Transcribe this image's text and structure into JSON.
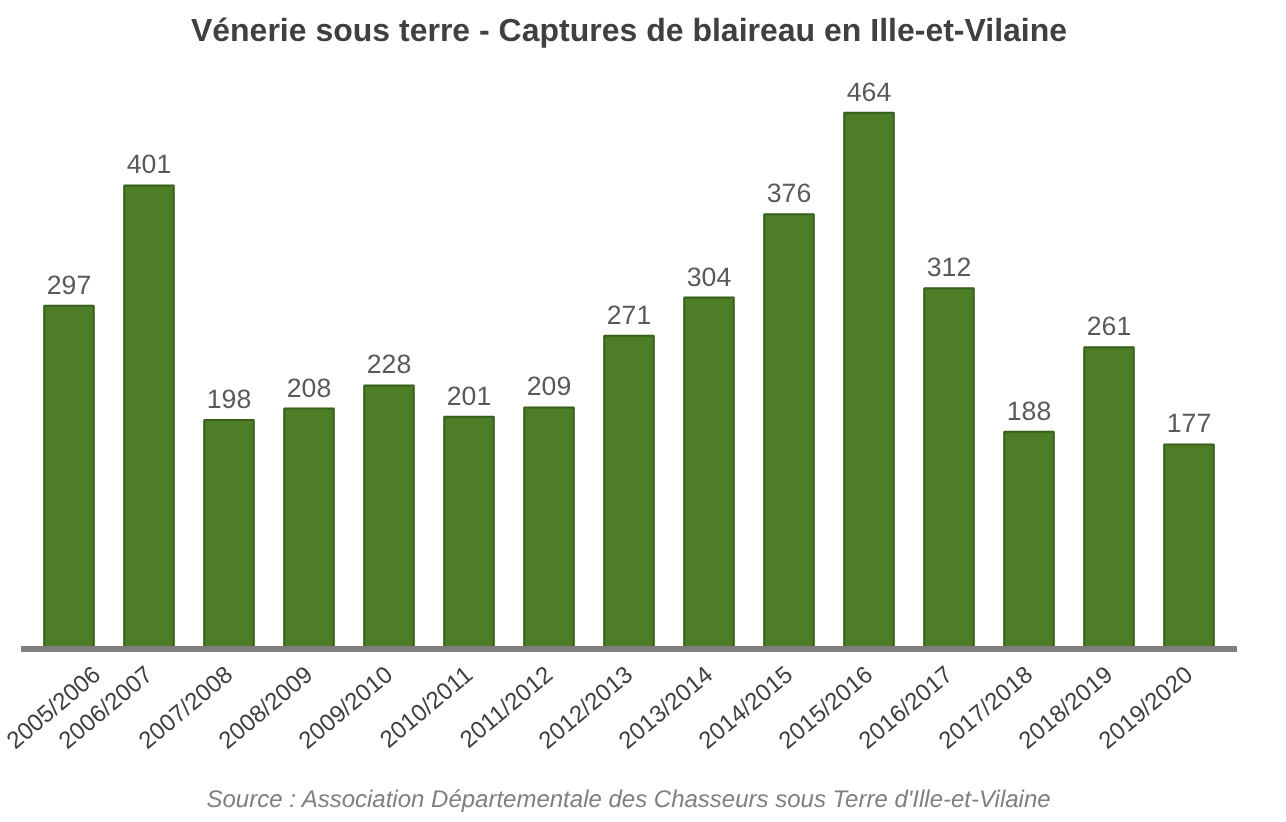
{
  "chart_data": {
    "type": "bar",
    "title": "Vénerie sous terre - Captures de blaireau en Ille-et-Vilaine",
    "categories": [
      "2005/2006",
      "2006/2007",
      "2007/2008",
      "2008/2009",
      "2009/2010",
      "2010/2011",
      "2011/2012",
      "2012/2013",
      "2013/2014",
      "2014/2015",
      "2015/2016",
      "2016/2017",
      "2017/2018",
      "2018/2019",
      "2019/2020"
    ],
    "values": [
      297,
      401,
      198,
      208,
      228,
      201,
      209,
      271,
      304,
      376,
      464,
      312,
      188,
      261,
      177
    ],
    "color": "#4e7d28",
    "data_labels": true,
    "grid": false,
    "annotations": [
      "Source : Association Départementale des Chasseurs sous Terre d'Ille-et-Vilaine"
    ]
  }
}
